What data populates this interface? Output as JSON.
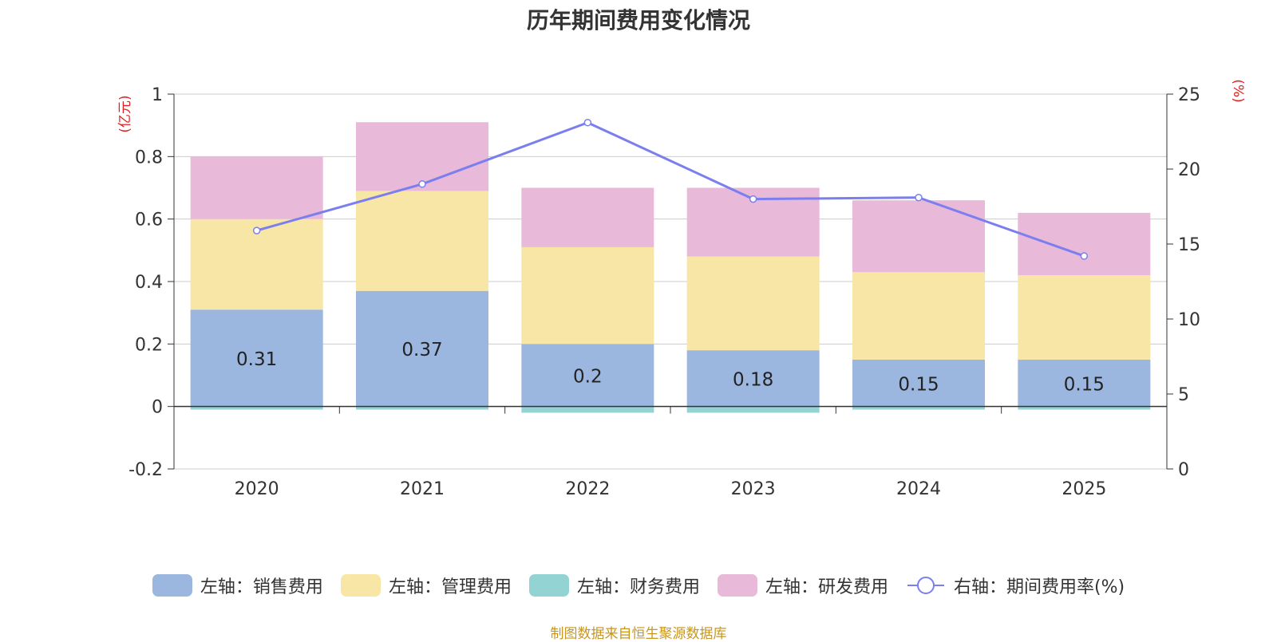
{
  "chart_data": {
    "type": "bar",
    "title": "历年期间费用变化情况",
    "categories": [
      "2020",
      "2021",
      "2022",
      "2023",
      "2024",
      "2025"
    ],
    "left_axis": {
      "unit": "(亿元)",
      "ylim": [
        -0.2,
        1
      ],
      "ticks": [
        -0.2,
        0,
        0.2,
        0.4,
        0.6,
        0.8,
        1
      ],
      "tick_labels": [
        "-0.2",
        "0",
        "0.2",
        "0.4",
        "0.6",
        "0.8",
        "1"
      ]
    },
    "right_axis": {
      "unit": "(%)",
      "ylim": [
        0,
        25
      ],
      "ticks": [
        0,
        5,
        10,
        15,
        20,
        25
      ],
      "tick_labels": [
        "0",
        "5",
        "10",
        "15",
        "20",
        "25"
      ]
    },
    "series": [
      {
        "name": "左轴：销售费用",
        "type": "bar",
        "axis": "left",
        "color": "#9bb7e0",
        "values": [
          0.31,
          0.37,
          0.2,
          0.18,
          0.15,
          0.15
        ],
        "labels": [
          "0.31",
          "0.37",
          "0.2",
          "0.18",
          "0.15",
          "0.15"
        ]
      },
      {
        "name": "左轴：管理费用",
        "type": "bar",
        "axis": "left",
        "color": "#f7e6a6",
        "values": [
          0.29,
          0.32,
          0.31,
          0.3,
          0.28,
          0.27
        ]
      },
      {
        "name": "左轴：财务费用",
        "type": "bar",
        "axis": "left",
        "color": "#93d3d3",
        "values": [
          -0.01,
          -0.01,
          -0.02,
          -0.02,
          -0.01,
          -0.01
        ]
      },
      {
        "name": "左轴：研发费用",
        "type": "bar",
        "axis": "left",
        "color": "#e8b9d9",
        "values": [
          0.2,
          0.22,
          0.19,
          0.22,
          0.23,
          0.2
        ]
      },
      {
        "name": "右轴：期间费用率(%)",
        "type": "line",
        "axis": "right",
        "color": "#7b7fee",
        "values": [
          15.9,
          19,
          23.1,
          18,
          18.1,
          14.2
        ]
      }
    ],
    "legend_position": "bottom",
    "grid": true
  },
  "source": "制图数据来自恒生聚源数据库"
}
